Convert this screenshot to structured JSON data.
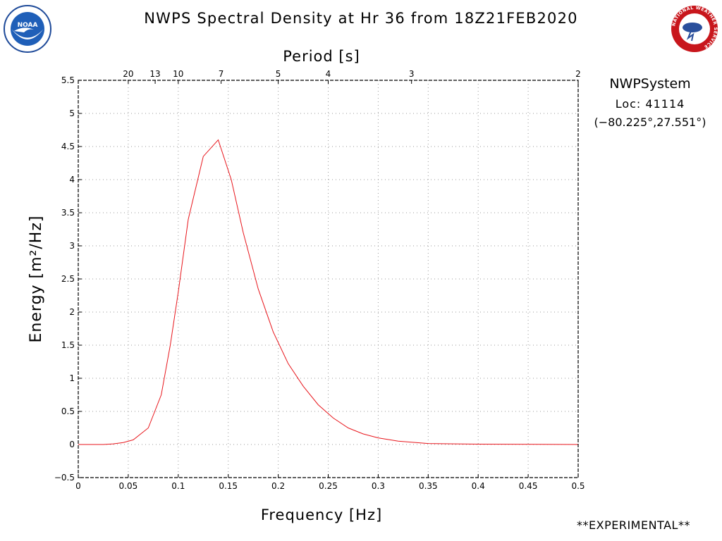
{
  "header": {
    "title": "NWPS Spectral Density at Hr 36 from 18Z21FEB2020",
    "left_logo": {
      "icon": "noaa-logo-icon",
      "text": "NOAA"
    },
    "right_logo": {
      "icon": "nws-logo-icon",
      "text": "NATIONAL WEATHER SERVICE"
    }
  },
  "info": {
    "system": "NWPSystem",
    "location": "Loc: 41114",
    "coords": "(−80.225°,27.551°)"
  },
  "footer": {
    "experimental": "**EXPERIMENTAL**"
  },
  "colors": {
    "line": "#e8161c",
    "grid": "#9a9a9a",
    "frame": "#000000"
  },
  "chart_data": {
    "type": "line",
    "xlabel": "Frequency [Hz]",
    "ylabel": "Energy [m²/Hz]",
    "top_axis_label": "Period [s]",
    "xlim": [
      0,
      0.5
    ],
    "ylim": [
      -0.5,
      5.5
    ],
    "x_ticks": [
      "0",
      "0.05",
      "0.1",
      "0.15",
      "0.2",
      "0.25",
      "0.3",
      "0.35",
      "0.4",
      "0.45",
      "0.5"
    ],
    "y_ticks": [
      "−0.5",
      "0",
      "0.5",
      "1",
      "1.5",
      "2",
      "2.5",
      "3",
      "3.5",
      "4",
      "4.5",
      "5",
      "5.5"
    ],
    "top_ticks": [
      {
        "label": "20",
        "period": 20
      },
      {
        "label": "13",
        "period": 13
      },
      {
        "label": "10",
        "period": 10
      },
      {
        "label": "7",
        "period": 7
      },
      {
        "label": "5",
        "period": 5
      },
      {
        "label": "4",
        "period": 4
      },
      {
        "label": "3",
        "period": 3
      },
      {
        "label": "2",
        "period": 2
      }
    ],
    "grid": true,
    "series": [
      {
        "x": [
          0,
          0.025,
          0.035,
          0.045,
          0.055,
          0.07,
          0.083,
          0.092,
          0.1,
          0.11,
          0.125,
          0.14,
          0.153,
          0.165,
          0.18,
          0.195,
          0.21,
          0.225,
          0.24,
          0.255,
          0.27,
          0.285,
          0.3,
          0.32,
          0.35,
          0.4,
          0.5
        ],
        "y": [
          0,
          0,
          0.01,
          0.03,
          0.07,
          0.25,
          0.75,
          1.5,
          2.3,
          3.4,
          4.35,
          4.6,
          4.0,
          3.2,
          2.35,
          1.7,
          1.22,
          0.88,
          0.6,
          0.4,
          0.25,
          0.16,
          0.1,
          0.05,
          0.015,
          0.005,
          0
        ]
      }
    ]
  }
}
